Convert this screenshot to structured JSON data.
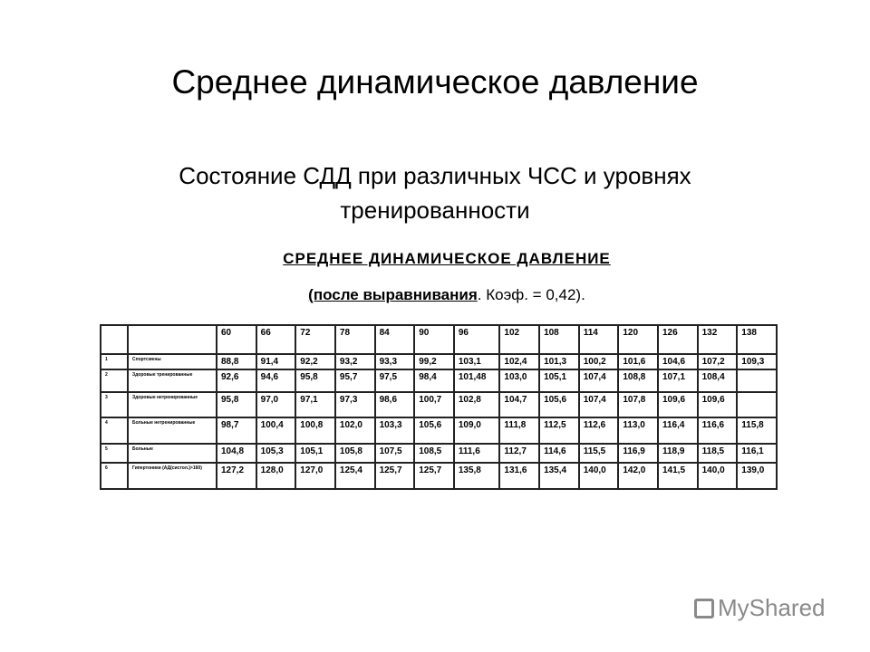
{
  "title": "Среднее динамическое давление",
  "subtitle": "Состояние СДД при различных ЧСС и уровнях тренированности",
  "table_caption": "СРЕДНЕЕ ДИНАМИЧЕСКОЕ ДАВЛЕНИЕ",
  "table_subcaption_bold": "(после выравнивания",
  "table_subcaption_rest": ". Коэф. = 0,42).",
  "headers": [
    "60",
    "66",
    "72",
    "78",
    "84",
    "90",
    "96",
    "102",
    "108",
    "114",
    "120",
    "126",
    "132",
    "138"
  ],
  "rows": [
    {
      "num": "1",
      "label": "Спортсмены",
      "values": [
        "88,8",
        "91,4",
        "92,2",
        "93,2",
        "93,3",
        "99,2",
        "103,1",
        "102,4",
        "101,3",
        "100,2",
        "101,6",
        "104,6",
        "107,2",
        "109,3"
      ]
    },
    {
      "num": "2",
      "label": "Здоровые тренированные",
      "values": [
        "92,6",
        "94,6",
        "95,8",
        "95,7",
        "97,5",
        "98,4",
        "101,48",
        "103,0",
        "105,1",
        "107,4",
        "108,8",
        "107,1",
        "108,4",
        ""
      ]
    },
    {
      "num": "3",
      "label": "Здоровые нетренированные",
      "values": [
        "95,8",
        "97,0",
        "97,1",
        "97,3",
        "98,6",
        "100,7",
        "102,8",
        "104,7",
        "105,6",
        "107,4",
        "107,8",
        "109,6",
        "109,6",
        ""
      ]
    },
    {
      "num": "4",
      "label": "Больные нетренированные",
      "values": [
        "98,7",
        "100,4",
        "100,8",
        "102,0",
        "103,3",
        "105,6",
        "109,0",
        "111,8",
        "112,5",
        "112,6",
        "113,0",
        "116,4",
        "116,6",
        "115,8"
      ]
    },
    {
      "num": "5",
      "label": "Больные",
      "values": [
        "104,8",
        "105,3",
        "105,1",
        "105,8",
        "107,5",
        "108,5",
        "111,6",
        "112,7",
        "114,6",
        "115,5",
        "116,9",
        "118,9",
        "118,5",
        "116,1"
      ]
    },
    {
      "num": "6",
      "label": "Гипертоники (АД(систол.)>160)",
      "values": [
        "127,2",
        "128,0",
        "127,0",
        "125,4",
        "125,7",
        "125,7",
        "135,8",
        "131,6",
        "135,4",
        "140,0",
        "142,0",
        "141,5",
        "140,0",
        "139,0"
      ]
    }
  ],
  "logo": "MyShared"
}
